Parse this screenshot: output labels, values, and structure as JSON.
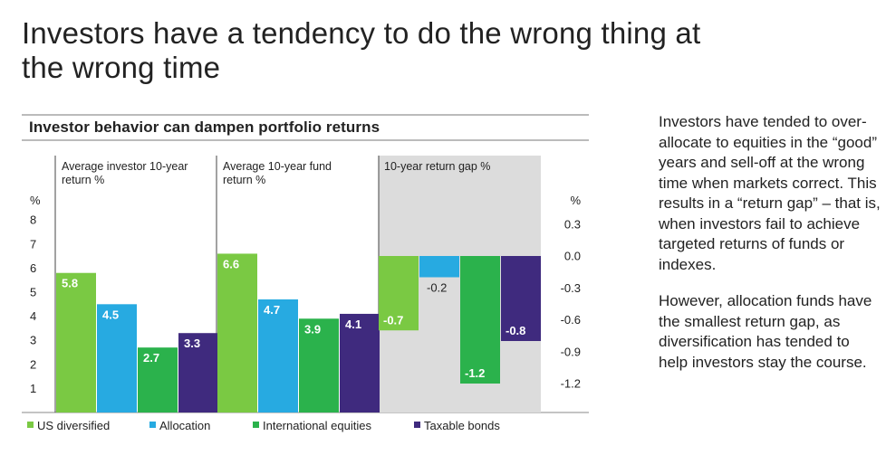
{
  "headline": "Investors have a tendency to do the wrong thing at the wrong time",
  "sidebar": {
    "p1": "Investors have tended to over-allocate to equities in the “good” years and sell-off at the wrong time when markets correct. This results in a “return gap” – that is, when investors fail to achieve targeted returns of funds or indexes.",
    "p2": "However, allocation funds have the smallest return gap, as diversification has tended to help investors stay the course."
  },
  "colors": {
    "us_diversified": "#7ac943",
    "allocation": "#27aae1",
    "international_equities": "#2bb24c",
    "taxable_bonds": "#3f2a7e",
    "gap_panel_bg": "#dcdcdc"
  },
  "chart_data": {
    "type": "bar",
    "title": "Investor behavior can dampen portfolio returns",
    "series_names": [
      "US diversified",
      "Allocation",
      "International equities",
      "Taxable bonds"
    ],
    "panels": [
      {
        "label": "Average investor 10-year return %",
        "values": [
          5.8,
          4.5,
          2.7,
          3.3
        ],
        "labels": [
          "5.8",
          "4.5",
          "2.7",
          "3.3"
        ]
      },
      {
        "label": "Average 10-year fund return %",
        "values": [
          6.6,
          4.7,
          3.9,
          4.1
        ],
        "labels": [
          "6.6",
          "4.7",
          "3.9",
          "4.1"
        ]
      },
      {
        "label": "10-year return gap %",
        "values": [
          -0.7,
          -0.2,
          -1.2,
          -0.8
        ],
        "labels": [
          "-0.7",
          "-0.2",
          "-1.2",
          "-0.8"
        ]
      }
    ],
    "left_axis": {
      "unit": "%",
      "ticks": [
        "8",
        "7",
        "6",
        "5",
        "4",
        "3",
        "2",
        "1"
      ],
      "range": [
        0,
        9
      ]
    },
    "right_axis": {
      "unit": "%",
      "ticks": [
        "0.3",
        "0.0",
        "-0.3",
        "-0.6",
        "-0.9",
        "-1.2"
      ]
    },
    "legend_position": "bottom-left"
  }
}
